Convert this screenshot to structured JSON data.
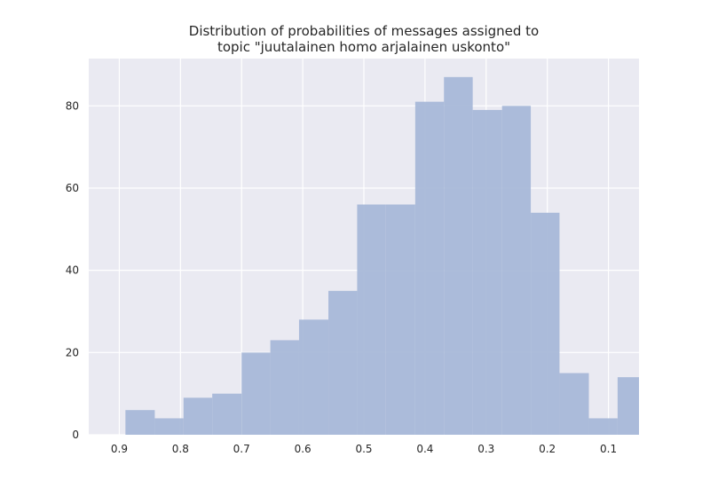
{
  "chart_data": {
    "type": "bar",
    "title": "Distribution of probabilities of messages assigned to",
    "subtitle": "topic \"juutalainen homo arjalainen uskonto\"",
    "xlabel": "",
    "ylabel": "",
    "x_axis_inverted": true,
    "xlim": [
      0.95,
      0.05
    ],
    "ylim": [
      0,
      91.5
    ],
    "grid": true,
    "x_ticks": [
      0.9,
      0.8,
      0.7,
      0.6,
      0.5,
      0.4,
      0.3,
      0.2,
      0.1
    ],
    "x_tick_labels": [
      "0.9",
      "0.8",
      "0.7",
      "0.6",
      "0.5",
      "0.4",
      "0.3",
      "0.2",
      "0.1"
    ],
    "y_ticks": [
      0,
      20,
      40,
      60,
      80
    ],
    "y_tick_labels": [
      "0",
      "20",
      "40",
      "60",
      "80"
    ],
    "bin_edges": [
      0.89,
      0.842,
      0.795,
      0.748,
      0.7,
      0.653,
      0.606,
      0.558,
      0.511,
      0.464,
      0.416,
      0.369,
      0.322,
      0.274,
      0.227,
      0.18,
      0.132,
      0.085,
      0.05
    ],
    "values": [
      6,
      4,
      9,
      10,
      20,
      23,
      28,
      35,
      56,
      56,
      81,
      87,
      79,
      80,
      54,
      15,
      4,
      14
    ],
    "bar_color": "#a8b8d8",
    "background_color": "#eaeaf2",
    "grid_color": "#ffffff"
  }
}
